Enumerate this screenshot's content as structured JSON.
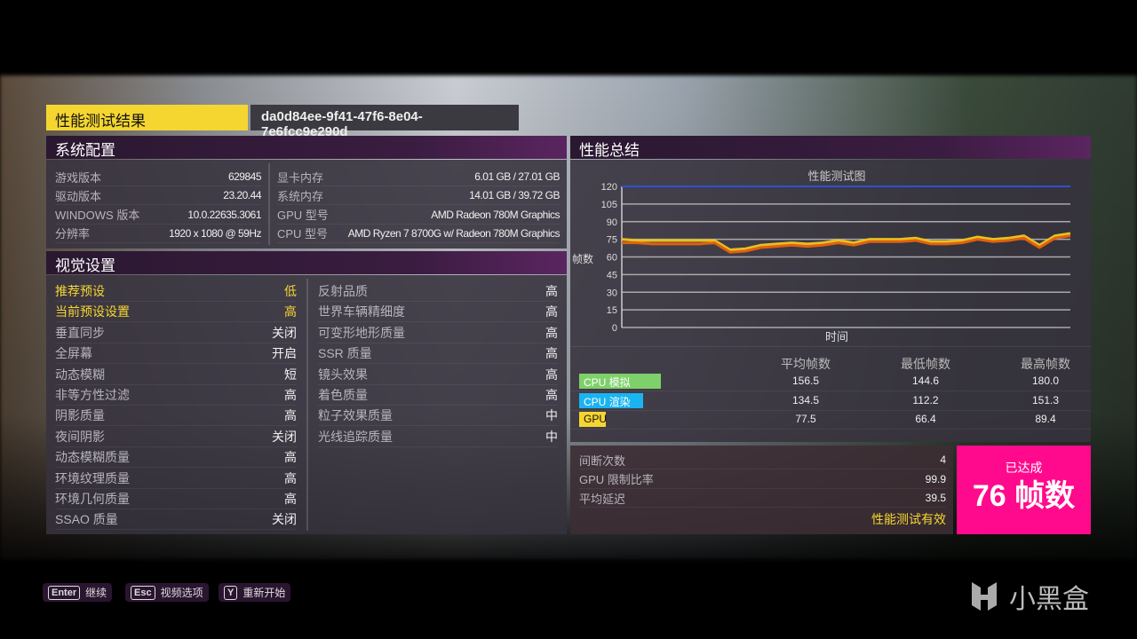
{
  "header": {
    "title": "性能测试结果",
    "benchmark_id": "da0d84ee-9f41-47f6-8e04-7e6fcc9e290d"
  },
  "system": {
    "title": "系统配置",
    "left": [
      {
        "k": "游戏版本",
        "v": "629845"
      },
      {
        "k": "驱动版本",
        "v": "23.20.44"
      },
      {
        "k": "WINDOWS 版本",
        "v": "10.0.22635.3061"
      },
      {
        "k": "分辨率",
        "v": "1920 x 1080 @ 59Hz"
      }
    ],
    "right": [
      {
        "k": "显卡内存",
        "v": "6.01 GB / 27.01 GB"
      },
      {
        "k": "系统内存",
        "v": "14.01 GB / 39.72 GB"
      },
      {
        "k": "GPU 型号",
        "v": "AMD Radeon 780M Graphics"
      },
      {
        "k": "CPU 型号",
        "v": "AMD Ryzen 7 8700G w/ Radeon 780M Graphics"
      }
    ]
  },
  "visual": {
    "title": "视觉设置",
    "left": [
      {
        "k": "推荐预设",
        "v": "低"
      },
      {
        "k": "当前预设设置",
        "v": "高"
      },
      {
        "k": "垂直同步",
        "v": "关闭"
      },
      {
        "k": "全屏幕",
        "v": "开启"
      },
      {
        "k": "动态模糊",
        "v": "短"
      },
      {
        "k": "非等方性过滤",
        "v": "高"
      },
      {
        "k": "阴影质量",
        "v": "高"
      },
      {
        "k": "夜间阴影",
        "v": "关闭"
      },
      {
        "k": "动态模糊质量",
        "v": "高"
      },
      {
        "k": "环境纹理质量",
        "v": "高"
      },
      {
        "k": "环境几何质量",
        "v": "高"
      },
      {
        "k": "SSAO 质量",
        "v": "关闭"
      }
    ],
    "right": [
      {
        "k": "反射品质",
        "v": "高"
      },
      {
        "k": "世界车辆精细度",
        "v": "高"
      },
      {
        "k": "可变形地形质量",
        "v": "高"
      },
      {
        "k": "SSR 质量",
        "v": "高"
      },
      {
        "k": "镜头效果",
        "v": "高"
      },
      {
        "k": "着色质量",
        "v": "高"
      },
      {
        "k": "粒子效果质量",
        "v": "中"
      },
      {
        "k": "光线追踪质量",
        "v": "中"
      }
    ]
  },
  "summary": {
    "title": "性能总结",
    "table": {
      "headers": [
        "平均帧数",
        "最低帧数",
        "最高帧数"
      ],
      "rows": [
        {
          "label": "CPU 模拟",
          "color": "#7ed06a",
          "values": [
            "156.5",
            "144.6",
            "180.0"
          ]
        },
        {
          "label": "CPU 渲染",
          "color": "#1ab4f0",
          "values": [
            "134.5",
            "112.2",
            "151.3"
          ]
        },
        {
          "label": "GPU",
          "color": "#f5d631",
          "values": [
            "77.5",
            "66.4",
            "89.4"
          ]
        }
      ]
    },
    "stats": [
      {
        "k": "间断次数",
        "v": "4"
      },
      {
        "k": "GPU 限制比率",
        "v": "99.9"
      },
      {
        "k": "平均延迟",
        "v": "39.5"
      }
    ],
    "valid": "性能测试有效",
    "achieved_label": "已达成",
    "achieved_value": "76 帧数",
    "achieved_color": "#ff0a8c"
  },
  "chart_data": {
    "type": "line",
    "title": "性能测试图",
    "xlabel": "时间",
    "ylabel": "帧数",
    "ylim": [
      0,
      120
    ],
    "yticks": [
      0,
      15,
      30,
      45,
      60,
      75,
      90,
      105,
      120
    ],
    "grid": true,
    "series": [
      {
        "color": "#3050d0",
        "values": [
          120,
          120,
          120,
          120,
          120,
          120,
          120,
          120,
          120,
          120,
          120,
          120,
          120,
          120,
          120,
          120,
          120,
          120,
          120,
          120,
          120,
          120,
          120,
          120,
          120,
          120,
          120,
          120,
          120,
          120
        ]
      },
      {
        "color": "#e8c020",
        "values": [
          75,
          74,
          74,
          74,
          74,
          74,
          74,
          66,
          67,
          70,
          71,
          72,
          71,
          72,
          74,
          72,
          75,
          75,
          75,
          76,
          73,
          73,
          74,
          77,
          75,
          76,
          78,
          70,
          78,
          80
        ]
      },
      {
        "color": "#e06010",
        "values": [
          72,
          72,
          71,
          71,
          71,
          71,
          72,
          64,
          65,
          68,
          69,
          70,
          69,
          70,
          72,
          70,
          73,
          73,
          73,
          74,
          71,
          71,
          72,
          75,
          73,
          74,
          76,
          68,
          76,
          78
        ]
      }
    ]
  },
  "footer": {
    "buttons": [
      {
        "key": "Enter",
        "label": "继续"
      },
      {
        "key": "Esc",
        "label": "视频选项"
      },
      {
        "key": "Y",
        "label": "重新开始"
      }
    ],
    "watermark": "小黑盒"
  }
}
